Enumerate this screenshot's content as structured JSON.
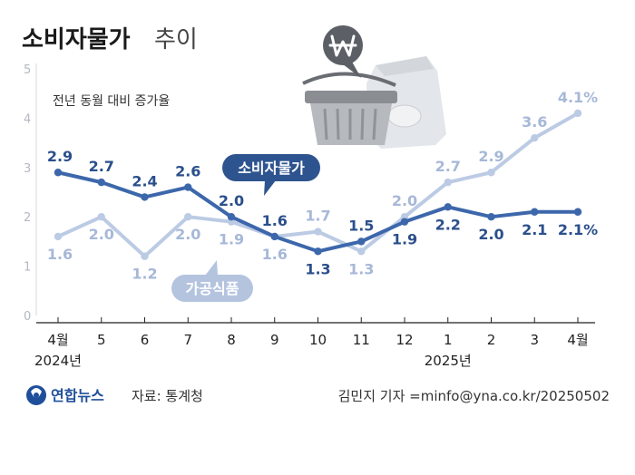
{
  "header": {
    "title_main": "소비자물가",
    "title_sub": "추이",
    "subtitle": "전년 동월 대비 증가율"
  },
  "chart_data": {
    "type": "line",
    "categories": [
      "4월",
      "5",
      "6",
      "7",
      "8",
      "9",
      "10",
      "11",
      "12",
      "1",
      "2",
      "3",
      "4월"
    ],
    "year_labels": [
      {
        "index": 0,
        "text": "2024년"
      },
      {
        "index": 9,
        "text": "2025년"
      }
    ],
    "ylim": [
      0,
      5
    ],
    "yticks": [
      "0",
      "1",
      "2",
      "3",
      "4",
      "5"
    ],
    "grid": false,
    "series": [
      {
        "name": "소비자물가",
        "color": "#3d67ab",
        "values": [
          2.9,
          2.7,
          2.4,
          2.6,
          2.0,
          1.6,
          1.3,
          1.5,
          1.9,
          2.2,
          2.0,
          2.1,
          2.1
        ],
        "labels": [
          "2.9",
          "2.7",
          "2.4",
          "2.6",
          "2.0",
          "1.6",
          "1.3",
          "1.5",
          "1.9",
          "2.2",
          "2.0",
          "2.1",
          "2.1%"
        ]
      },
      {
        "name": "가공식품",
        "color": "#bccbe4",
        "values": [
          1.6,
          2.0,
          1.2,
          2.0,
          1.9,
          1.6,
          1.7,
          1.3,
          2.0,
          2.7,
          2.9,
          3.6,
          4.1
        ],
        "labels": [
          "1.6",
          "2.0",
          "1.2",
          "2.0",
          "1.9",
          "1.6",
          "1.7",
          "1.3",
          "2.0",
          "2.7",
          "2.9",
          "3.6",
          "4.1%"
        ]
      }
    ]
  },
  "footer": {
    "logo_text": "연합뉴스",
    "source": "자료: 통계청",
    "credit": "김민지 기자 =minfo@yna.co.kr/20250502"
  },
  "icons": {
    "logo": "yonhap-logo-icon",
    "basket": "shopping-basket-icon",
    "won": "won-badge-icon",
    "bag": "flour-bag-icon"
  }
}
